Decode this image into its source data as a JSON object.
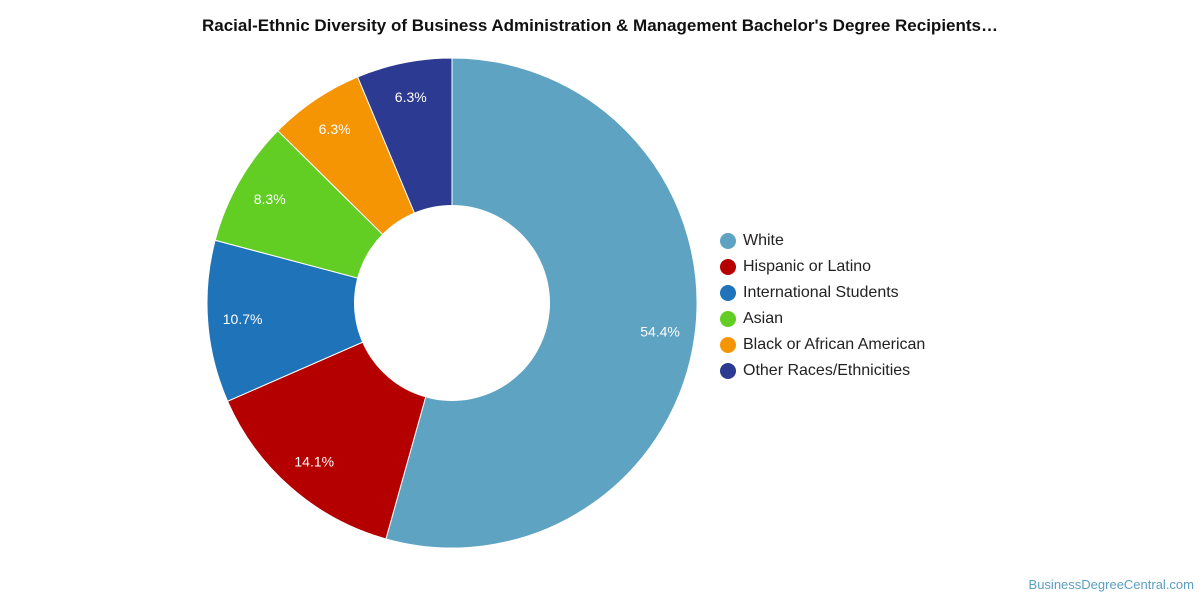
{
  "chart_data": {
    "type": "pie",
    "title": "Racial-Ethnic Diversity of Business Administration & Management Bachelor's Degree Recipients…",
    "categories": [
      "White",
      "Hispanic or Latino",
      "International Students",
      "Asian",
      "Black or African American",
      "Other Races/Ethnicities"
    ],
    "values": [
      54.4,
      14.1,
      10.7,
      8.3,
      6.3,
      6.3
    ],
    "value_labels": [
      "54.4%",
      "14.1%",
      "10.7%",
      "8.3%",
      "6.3%",
      "6.3%"
    ],
    "colors": [
      "#5ea3c1",
      "#b50000",
      "#1f73b9",
      "#62ce23",
      "#f69503",
      "#2c3a91"
    ],
    "donut": true,
    "legend_position": "right"
  },
  "credit": "BusinessDegreeCentral.com"
}
